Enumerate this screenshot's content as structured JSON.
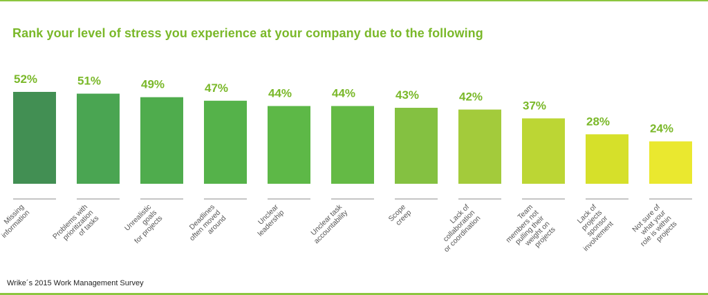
{
  "source_note": "Wrike´s 2015 Work Management Survey",
  "chart_data": {
    "type": "bar",
    "title": "Rank your level of stress you experience at your company due to the following",
    "categories": [
      [
        "Missing",
        "information"
      ],
      [
        "Problems with",
        "prioritization",
        "of tasks"
      ],
      [
        "Unrealistic",
        "goals",
        "for projects"
      ],
      [
        "Deadlines",
        "often moved",
        "around"
      ],
      [
        "Unclear",
        "leadership"
      ],
      [
        "Unclear task",
        "accountability"
      ],
      [
        "Scope",
        "creep"
      ],
      [
        "Lack of",
        "collaboration",
        "or coordination"
      ],
      [
        "Team",
        "members not",
        "pulling their",
        "weight on",
        "projects"
      ],
      [
        "Lack of",
        "projects",
        "sponsor",
        "involvement"
      ],
      [
        "Not sure of",
        "what your",
        "role is within",
        "projects"
      ]
    ],
    "values": [
      52,
      51,
      49,
      47,
      44,
      44,
      43,
      42,
      37,
      28,
      24
    ],
    "value_labels": [
      "52%",
      "51%",
      "49%",
      "47%",
      "44%",
      "44%",
      "43%",
      "42%",
      "37%",
      "28%",
      "24%"
    ],
    "bar_colors": [
      "#428f53",
      "#4aa552",
      "#4fac4d",
      "#55b24a",
      "#5db847",
      "#64ba45",
      "#84c141",
      "#a3cb3b",
      "#bcd634",
      "#d6e02a",
      "#eae82f"
    ],
    "label_color": "#7ab829",
    "ylim": [
      0,
      52
    ]
  }
}
